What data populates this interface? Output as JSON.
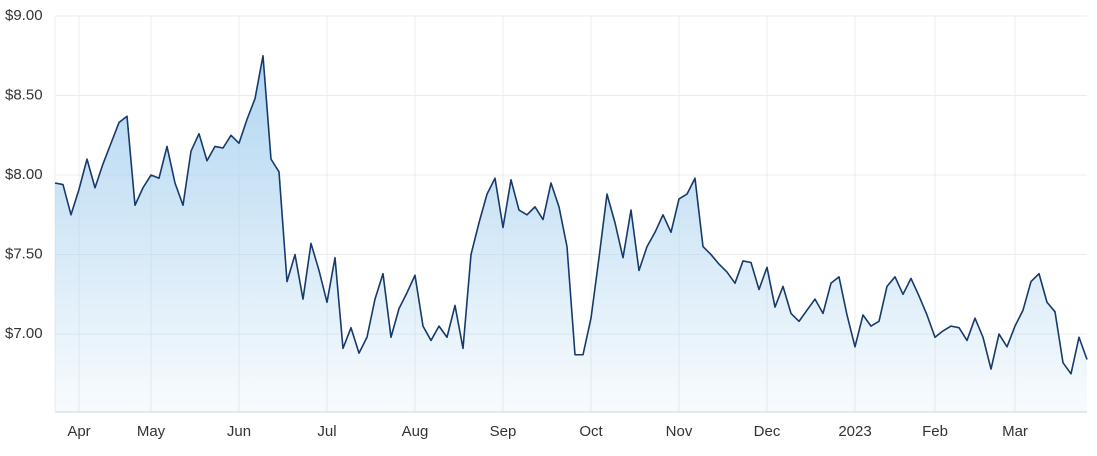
{
  "chart_data": {
    "type": "area",
    "categories": [
      null,
      null,
      null,
      "Apr",
      null,
      null,
      null,
      null,
      null,
      null,
      null,
      null,
      "May",
      null,
      null,
      null,
      null,
      null,
      null,
      null,
      null,
      null,
      null,
      "Jun",
      null,
      null,
      null,
      null,
      null,
      null,
      null,
      null,
      null,
      null,
      "Jul",
      null,
      null,
      null,
      null,
      null,
      null,
      null,
      null,
      null,
      null,
      "Aug",
      null,
      null,
      null,
      null,
      null,
      null,
      null,
      null,
      null,
      null,
      "Sep",
      null,
      null,
      null,
      null,
      null,
      null,
      null,
      null,
      null,
      null,
      "Oct",
      null,
      null,
      null,
      null,
      null,
      null,
      null,
      null,
      null,
      null,
      "Nov",
      null,
      null,
      null,
      null,
      null,
      null,
      null,
      null,
      null,
      null,
      "Dec",
      null,
      null,
      null,
      null,
      null,
      null,
      null,
      null,
      null,
      null,
      "2023",
      null,
      null,
      null,
      null,
      null,
      null,
      null,
      null,
      null,
      "Feb",
      null,
      null,
      null,
      null,
      null,
      null,
      null,
      null,
      null,
      "Mar",
      null,
      null,
      null,
      null,
      null,
      null,
      null,
      null,
      null
    ],
    "values": [
      7.95,
      7.94,
      7.75,
      7.91,
      8.1,
      7.92,
      8.07,
      8.2,
      8.33,
      8.37,
      7.81,
      7.92,
      8.0,
      7.98,
      8.18,
      7.95,
      7.81,
      8.15,
      8.26,
      8.09,
      8.18,
      8.17,
      8.25,
      8.2,
      8.35,
      8.48,
      8.75,
      8.1,
      8.02,
      7.33,
      7.5,
      7.22,
      7.57,
      7.4,
      7.2,
      7.48,
      6.91,
      7.04,
      6.88,
      6.98,
      7.22,
      7.38,
      6.98,
      7.16,
      7.26,
      7.37,
      7.05,
      6.96,
      7.05,
      6.98,
      7.18,
      6.91,
      7.5,
      7.7,
      7.88,
      7.98,
      7.67,
      7.97,
      7.78,
      7.75,
      7.8,
      7.72,
      7.95,
      7.8,
      7.55,
      6.87,
      6.87,
      7.1,
      7.48,
      7.88,
      7.7,
      7.48,
      7.78,
      7.4,
      7.55,
      7.64,
      7.75,
      7.64,
      7.85,
      7.88,
      7.98,
      7.55,
      7.5,
      7.44,
      7.39,
      7.32,
      7.46,
      7.45,
      7.28,
      7.42,
      7.17,
      7.3,
      7.13,
      7.08,
      7.15,
      7.22,
      7.13,
      7.32,
      7.36,
      7.12,
      6.92,
      7.12,
      7.05,
      7.08,
      7.3,
      7.36,
      7.25,
      7.35,
      7.24,
      7.12,
      6.98,
      7.02,
      7.05,
      7.04,
      6.96,
      7.1,
      6.98,
      6.78,
      7.0,
      6.92,
      7.05,
      7.15,
      7.33,
      7.38,
      7.2,
      7.14,
      6.82,
      6.75,
      6.98,
      6.84
    ],
    "color": "#163a6b",
    "fill_color": "#a8d1ef",
    "ylim": [
      6.51,
      9.0
    ],
    "yticks": [
      {
        "value": 7.0,
        "label": "$7.00"
      },
      {
        "value": 7.5,
        "label": "$7.50"
      },
      {
        "value": 8.0,
        "label": "$8.00"
      },
      {
        "value": 8.5,
        "label": "$8.50"
      },
      {
        "value": 9.0,
        "label": "$9.00"
      }
    ],
    "grid": true
  }
}
